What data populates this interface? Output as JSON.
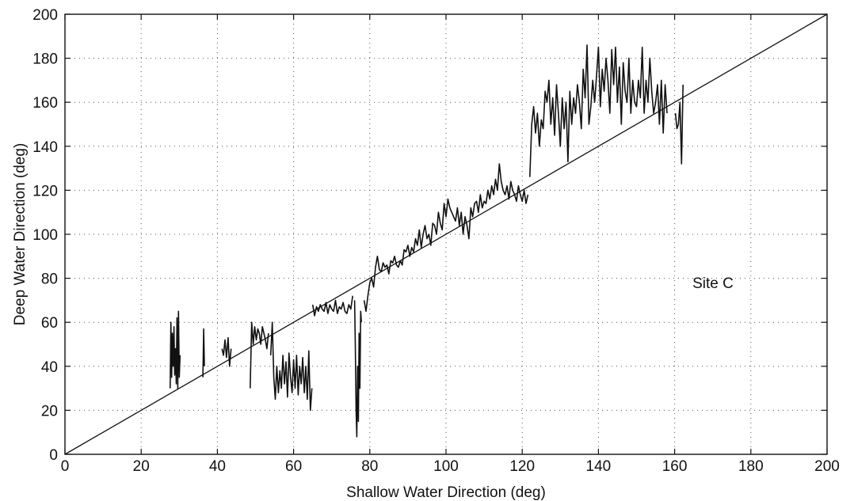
{
  "chart_data": {
    "type": "line",
    "title": "",
    "xlabel": "Shallow Water Direction (deg)",
    "ylabel": "Deep Water Direction (deg)",
    "xlim": [
      0,
      200
    ],
    "ylim": [
      0,
      200
    ],
    "x_ticks": [
      0,
      20,
      40,
      60,
      80,
      100,
      120,
      140,
      160,
      180,
      200
    ],
    "y_ticks": [
      0,
      20,
      40,
      60,
      80,
      100,
      120,
      140,
      160,
      180,
      200
    ],
    "grid": true,
    "annotation": {
      "text": "Site C",
      "x": 168,
      "y": 78
    },
    "reference_line": {
      "x": [
        0,
        200
      ],
      "y": [
        0,
        200
      ]
    },
    "series": [
      {
        "x": [
          27.6,
          27.8,
          28.0,
          28.2,
          28.4,
          28.6,
          28.8,
          29.0,
          29.2,
          29.4,
          29.6,
          29.8,
          30.0,
          30.2
        ],
        "y": [
          30,
          60,
          35,
          55,
          40,
          58,
          36,
          48,
          32,
          62,
          30,
          65,
          35,
          45
        ]
      },
      {
        "x": [
          36.2,
          36.4,
          36.6
        ],
        "y": [
          35,
          57,
          40
        ]
      },
      {
        "x": [
          41.2,
          41.6,
          42.0,
          42.4,
          42.8,
          43.2,
          43.6
        ],
        "y": [
          48,
          45,
          52,
          44,
          53,
          40,
          48
        ]
      },
      {
        "x": [
          48.6,
          49.0,
          49.4,
          49.8,
          50.2,
          50.6,
          51.0,
          51.4,
          51.8,
          52.2,
          52.6,
          53.0,
          53.4
        ],
        "y": [
          30,
          60,
          50,
          58,
          52,
          57,
          55,
          50,
          58,
          55,
          52,
          48,
          55
        ]
      },
      {
        "x": [
          54.0,
          54.4,
          54.8,
          55.2,
          55.6,
          56.0,
          56.4,
          56.8,
          57.2,
          57.6,
          58.0,
          58.4,
          58.8,
          59.2,
          59.6,
          60.0,
          60.4,
          60.8,
          61.2,
          61.6,
          62.0,
          62.4,
          62.8,
          63.2,
          63.6,
          64.0,
          64.4,
          64.8
        ],
        "y": [
          45,
          60,
          35,
          25,
          40,
          28,
          38,
          30,
          45,
          32,
          42,
          26,
          46,
          35,
          28,
          43,
          30,
          45,
          27,
          40,
          32,
          44,
          28,
          40,
          25,
          47,
          20,
          30
        ]
      },
      {
        "x": [
          65.0,
          65.5,
          66.0,
          66.5,
          67.0,
          67.5,
          68.0,
          68.5,
          69.0,
          69.5,
          70.0,
          70.5,
          71.0,
          71.5,
          72.0,
          72.5,
          73.0,
          73.5,
          74.0,
          74.5,
          75.0,
          75.5
        ],
        "y": [
          68,
          63,
          67,
          65,
          68,
          66,
          65,
          69,
          64,
          68,
          66,
          65,
          70,
          64,
          67,
          66,
          69,
          65,
          64,
          68,
          66,
          72
        ]
      },
      {
        "x": [
          76.0,
          76.2,
          76.4,
          76.6,
          76.8,
          77.0,
          77.2,
          77.4,
          77.6,
          77.8
        ],
        "y": [
          70,
          50,
          20,
          8,
          40,
          15,
          55,
          30,
          65,
          60
        ]
      },
      {
        "x": [
          78.5,
          79.0,
          79.5,
          80.0,
          80.5,
          81.0,
          81.5,
          82.0,
          82.5,
          83.0,
          83.5,
          84.0,
          84.5,
          85.0,
          85.5,
          86.0,
          86.5,
          87.0,
          87.5,
          88.0,
          88.5,
          89.0,
          89.5,
          90.0,
          90.5,
          91.0,
          91.5,
          92.0,
          92.5,
          93.0,
          93.5,
          94.0,
          94.5,
          95.0,
          95.5,
          96.0,
          96.5,
          97.0,
          97.5,
          98.0,
          98.5,
          99.0,
          99.5,
          100.0,
          100.5,
          101.0,
          101.5,
          102.0,
          102.5,
          103.0,
          103.5,
          104.0,
          104.5,
          105.0,
          105.5,
          106.0,
          106.5,
          107.0,
          107.5,
          108.0,
          108.5,
          109.0,
          109.5,
          110.0,
          110.5,
          111.0,
          111.5,
          112.0,
          112.5,
          113.0,
          113.5,
          114.0,
          114.5,
          115.0,
          115.5,
          116.0,
          116.5,
          117.0,
          117.5,
          118.0,
          118.5,
          119.0,
          119.5,
          120.0,
          120.5,
          121.0,
          121.5
        ],
        "y": [
          70,
          65,
          72,
          78,
          80,
          76,
          85,
          90,
          84,
          83,
          87,
          85,
          86,
          82,
          88,
          87,
          90,
          86,
          85,
          88,
          86,
          93,
          92,
          95,
          90,
          94,
          92,
          98,
          95,
          102,
          94,
          100,
          104,
          98,
          100,
          95,
          105,
          104,
          100,
          110,
          105,
          102,
          114,
          108,
          116,
          112,
          110,
          108,
          106,
          112,
          104,
          110,
          100,
          108,
          104,
          98,
          112,
          108,
          114,
          115,
          110,
          118,
          112,
          115,
          114,
          120,
          116,
          122,
          118,
          125,
          120,
          132,
          124,
          120,
          118,
          122,
          116,
          124,
          120,
          118,
          115,
          122,
          118,
          115,
          120,
          114,
          118
        ]
      },
      {
        "x": [
          122.0,
          122.5,
          123.0,
          123.5,
          124.0,
          124.5,
          125.0,
          125.5,
          126.0,
          126.5,
          127.0,
          127.5,
          128.0,
          128.5,
          129.0,
          129.5,
          130.0,
          130.5,
          131.0,
          131.5,
          132.0,
          132.5,
          133.0,
          133.5,
          134.0,
          134.5,
          135.0,
          135.5,
          136.0,
          136.5,
          137.0,
          137.5,
          138.0,
          138.5,
          139.0,
          139.5,
          140.0,
          140.5,
          141.0,
          141.5,
          142.0,
          142.5,
          143.0,
          143.5,
          144.0,
          144.5,
          145.0,
          145.5,
          146.0,
          146.5,
          147.0,
          147.5,
          148.0,
          148.5,
          149.0,
          149.5,
          150.0,
          150.5,
          151.0,
          151.5,
          152.0,
          152.5,
          153.0,
          153.5,
          154.0,
          154.5,
          155.0,
          155.5,
          156.0,
          156.5,
          157.0,
          157.5,
          158.0
        ],
        "y": [
          126,
          150,
          158,
          146,
          155,
          140,
          152,
          148,
          165,
          160,
          170,
          150,
          162,
          145,
          168,
          155,
          140,
          162,
          148,
          160,
          133,
          165,
          150,
          162,
          155,
          168,
          160,
          148,
          175,
          162,
          186,
          150,
          158,
          170,
          160,
          172,
          185,
          158,
          175,
          165,
          180,
          170,
          155,
          184,
          168,
          185,
          160,
          176,
          150,
          178,
          165,
          160,
          180,
          155,
          170,
          160,
          158,
          170,
          162,
          185,
          155,
          170,
          160,
          180,
          165,
          155,
          160,
          168,
          150,
          170,
          146,
          168,
          155
        ]
      },
      {
        "x": [
          160.2,
          160.6,
          161.0,
          161.4,
          161.8,
          162.2
        ],
        "y": [
          155,
          148,
          150,
          160,
          132,
          168
        ]
      }
    ]
  }
}
